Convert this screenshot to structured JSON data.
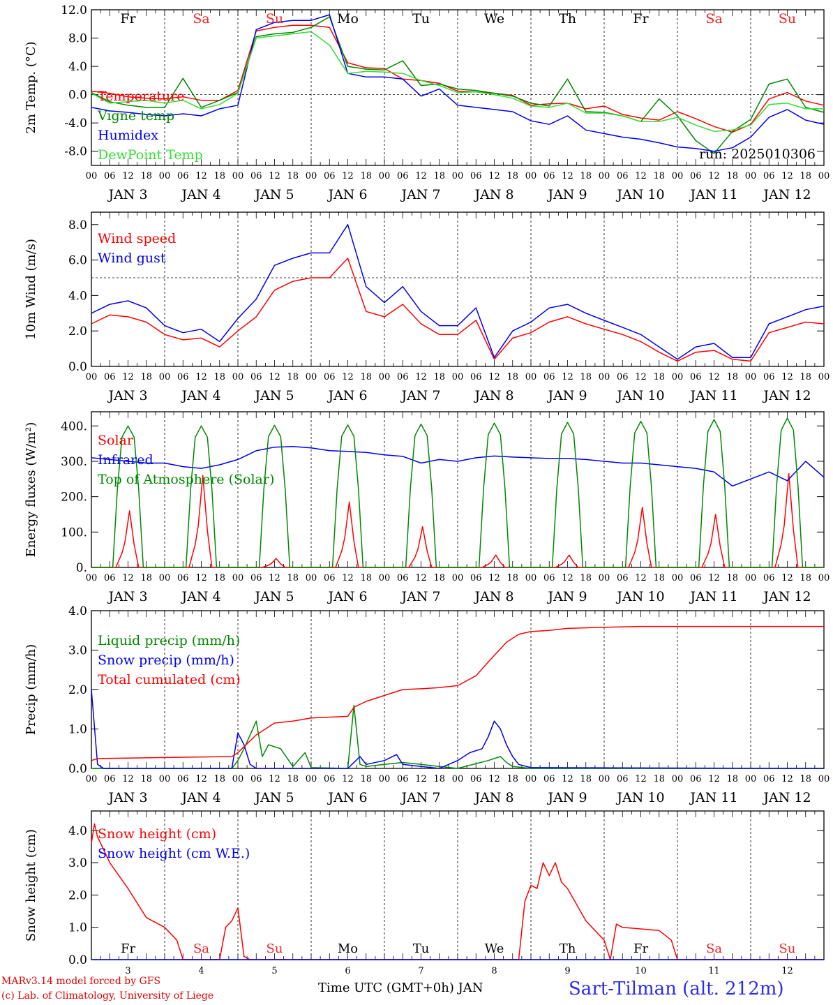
{
  "footer": {
    "model": "MARv3.14 model forced by GFS",
    "lab": "(c) Lab. of Climatology, University of Liege",
    "time_axis": "Time UTC (GMT+0h) JAN",
    "station": "Sart-Tilman (alt. 212m)"
  },
  "run_label": "run: 2025010306",
  "day_names": [
    "Fr",
    "Sa",
    "Su",
    "Mo",
    "Tu",
    "We",
    "Th",
    "Fr",
    "Sa",
    "Su"
  ],
  "weekend_color": "#ff2020",
  "weekday_color": "#000000",
  "date_labels": [
    "JAN  3",
    "JAN  4",
    "JAN  5",
    "JAN  6",
    "JAN  7",
    "JAN  8",
    "JAN  9",
    "JAN 10",
    "JAN 11",
    "JAN 12"
  ],
  "hour_labels": [
    "00",
    "06",
    "12",
    "18"
  ],
  "bottom_day_numbers": [
    "3",
    "4",
    "5",
    "6",
    "7",
    "8",
    "9",
    "10",
    "11",
    "12"
  ],
  "chart_data": [
    {
      "type": "line",
      "ylabel": "2m Temp. (°C)",
      "ylim": [
        -10,
        12
      ],
      "yticks": [
        "12.0",
        "8.0",
        "4.0",
        "0.0",
        "-4.0",
        "-8.0"
      ],
      "ytick_values": [
        12,
        8,
        4,
        0,
        -4,
        -8
      ],
      "hline": 0,
      "x_unit": "hours from JAN 3 00 UTC",
      "series": [
        {
          "name": "Temperature",
          "color": "#ff0000",
          "x": [
            0,
            6,
            12,
            18,
            24,
            30,
            36,
            42,
            48,
            54,
            60,
            66,
            72,
            78,
            84,
            90,
            96,
            102,
            108,
            114,
            120,
            126,
            132,
            138,
            144,
            150,
            156,
            162,
            168,
            174,
            180,
            186,
            192,
            198,
            204,
            210,
            216,
            222,
            228,
            234,
            240
          ],
          "y": [
            0.5,
            0.2,
            -0.3,
            -0.5,
            -0.6,
            -0.3,
            -0.8,
            -0.8,
            0.6,
            9,
            9.5,
            9.8,
            9.8,
            9.5,
            4.5,
            3.8,
            3.7,
            2.2,
            2,
            1.6,
            0.5,
            0.4,
            0.2,
            -0.1,
            -1.5,
            -1.3,
            -1.2,
            -2,
            -1.6,
            -2.8,
            -3.3,
            -3.6,
            -2.4,
            -3.4,
            -4.5,
            -5.3,
            -4.2,
            -0.6,
            0.3,
            -0.9,
            -1.5
          ]
        },
        {
          "name": "Vigne temp",
          "color": "#008800",
          "x": [
            0,
            6,
            12,
            18,
            24,
            30,
            36,
            42,
            48,
            54,
            60,
            66,
            72,
            78,
            84,
            90,
            96,
            102,
            108,
            114,
            120,
            126,
            132,
            138,
            144,
            150,
            156,
            162,
            168,
            174,
            180,
            186,
            192,
            198,
            204,
            210,
            216,
            222,
            228,
            234,
            240
          ],
          "y": [
            0.3,
            -1.0,
            -1.5,
            -1.8,
            -1.8,
            2.3,
            -1.8,
            -0.8,
            0.3,
            8.2,
            8.6,
            8.8,
            9.5,
            11.0,
            4.0,
            3.6,
            3.5,
            4.8,
            1.3,
            1.5,
            0.8,
            0.6,
            0.2,
            -0.2,
            -1.2,
            -1.6,
            2.2,
            -2.4,
            -2.5,
            -3.0,
            -3.8,
            -0.6,
            -3.0,
            -6.5,
            -8.3,
            -5.2,
            -3.5,
            1.5,
            2.2,
            -1.8,
            -2.5
          ]
        },
        {
          "name": "Humidex",
          "color": "#0000ee",
          "x": [
            0,
            6,
            12,
            18,
            24,
            30,
            36,
            42,
            48,
            54,
            60,
            66,
            72,
            78,
            84,
            90,
            96,
            102,
            108,
            114,
            120,
            126,
            132,
            138,
            144,
            150,
            156,
            162,
            168,
            174,
            180,
            186,
            192,
            198,
            204,
            210,
            216,
            222,
            228,
            234,
            240
          ],
          "y": [
            -1.8,
            -2.3,
            -2.5,
            -2.8,
            -3.0,
            -2.7,
            -3.0,
            -2.0,
            -1.5,
            9.2,
            10.2,
            10.5,
            10.5,
            11.3,
            3.0,
            2.5,
            2.5,
            2.2,
            -0.2,
            0.8,
            -1.5,
            -1.8,
            -2.1,
            -2.4,
            -3.7,
            -4.2,
            -3.0,
            -5.0,
            -5.5,
            -6.0,
            -6.3,
            -6.8,
            -7.4,
            -7.6,
            -8.0,
            -7.5,
            -6.0,
            -3.2,
            -2.1,
            -3.6,
            -4.2
          ]
        },
        {
          "name": "DewPoint Temp",
          "color": "#33dd33",
          "x": [
            0,
            6,
            12,
            18,
            24,
            30,
            36,
            42,
            48,
            54,
            60,
            66,
            72,
            78,
            84,
            90,
            96,
            102,
            108,
            114,
            120,
            126,
            132,
            138,
            144,
            150,
            156,
            162,
            168,
            174,
            180,
            186,
            192,
            198,
            204,
            210,
            216,
            222,
            228,
            234,
            240
          ],
          "y": [
            0.2,
            -1.2,
            -1.0,
            -0.8,
            -1.2,
            -0.8,
            -2.0,
            -1.4,
            0.2,
            8.0,
            8.3,
            8.6,
            8.9,
            7.0,
            3.0,
            3.3,
            3.2,
            3.0,
            2.0,
            1.3,
            0.3,
            0.4,
            0.0,
            -0.5,
            -1.6,
            -1.8,
            -1.2,
            -2.6,
            -2.6,
            -3.0,
            -3.8,
            -3.8,
            -3.2,
            -4.3,
            -5.2,
            -5.0,
            -4.3,
            -1.4,
            -1.2,
            -2.0,
            -2.0
          ]
        }
      ]
    },
    {
      "type": "line",
      "ylabel": "10m Wind (m/s)",
      "ylim": [
        0,
        8.7
      ],
      "yticks": [
        "8.0",
        "6.0",
        "4.0",
        "2.0",
        "0.0"
      ],
      "ytick_values": [
        8,
        6,
        4,
        2,
        0
      ],
      "hline": 5,
      "series": [
        {
          "name": "Wind speed",
          "color": "#ff0000",
          "x": [
            0,
            6,
            12,
            18,
            24,
            30,
            36,
            42,
            48,
            54,
            60,
            66,
            72,
            78,
            84,
            90,
            96,
            102,
            108,
            114,
            120,
            126,
            132,
            138,
            144,
            150,
            156,
            162,
            168,
            174,
            180,
            186,
            192,
            198,
            204,
            210,
            216,
            222,
            228,
            234,
            240
          ],
          "y": [
            2.4,
            2.9,
            2.8,
            2.5,
            1.8,
            1.5,
            1.6,
            1.1,
            2.0,
            2.8,
            4.3,
            4.8,
            5.0,
            5.0,
            6.1,
            3.1,
            2.8,
            3.5,
            2.4,
            1.8,
            1.8,
            2.6,
            0.4,
            1.6,
            1.9,
            2.5,
            2.8,
            2.4,
            2.1,
            1.8,
            1.4,
            0.8,
            0.3,
            0.8,
            0.9,
            0.4,
            0.3,
            1.9,
            2.2,
            2.5,
            2.4
          ]
        },
        {
          "name": "Wind gust",
          "color": "#0000ee",
          "x": [
            0,
            6,
            12,
            18,
            24,
            30,
            36,
            42,
            48,
            54,
            60,
            66,
            72,
            78,
            84,
            90,
            96,
            102,
            108,
            114,
            120,
            126,
            132,
            138,
            144,
            150,
            156,
            162,
            168,
            174,
            180,
            186,
            192,
            198,
            204,
            210,
            216,
            222,
            228,
            234,
            240
          ],
          "y": [
            3.0,
            3.5,
            3.7,
            3.3,
            2.3,
            1.9,
            2.1,
            1.4,
            2.7,
            3.8,
            5.7,
            6.1,
            6.4,
            6.4,
            8.0,
            4.5,
            3.6,
            4.5,
            3.1,
            2.3,
            2.3,
            3.3,
            0.5,
            2.0,
            2.5,
            3.3,
            3.5,
            3.0,
            2.6,
            2.2,
            1.8,
            1.1,
            0.4,
            1.1,
            1.3,
            0.5,
            0.5,
            2.4,
            2.8,
            3.2,
            3.4
          ]
        }
      ]
    },
    {
      "type": "line",
      "ylabel": "Energy fluxes (W/m²)",
      "ylim": [
        0,
        440
      ],
      "yticks": [
        "400.",
        "300.",
        "200.",
        "100.",
        "0."
      ],
      "ytick_values": [
        400,
        300,
        200,
        100,
        0
      ],
      "series": [
        {
          "name": "Solar",
          "color": "#ff0000",
          "day_peaks": [
            160,
            260,
            25,
            185,
            115,
            35,
            35,
            170,
            150,
            265
          ]
        },
        {
          "name": "Infrared",
          "color": "#0000ee",
          "x": [
            0,
            6,
            12,
            18,
            24,
            30,
            36,
            42,
            48,
            54,
            60,
            66,
            72,
            78,
            84,
            90,
            96,
            102,
            108,
            114,
            120,
            126,
            132,
            138,
            144,
            150,
            156,
            162,
            168,
            174,
            180,
            186,
            192,
            198,
            204,
            210,
            216,
            222,
            228,
            234,
            240
          ],
          "y": [
            310,
            305,
            300,
            295,
            295,
            285,
            280,
            290,
            305,
            330,
            340,
            342,
            338,
            330,
            328,
            325,
            318,
            314,
            295,
            305,
            300,
            310,
            315,
            312,
            310,
            308,
            308,
            305,
            300,
            295,
            295,
            290,
            285,
            280,
            270,
            230,
            250,
            270,
            245,
            300,
            255
          ]
        },
        {
          "name": "Top of Atmosphere (Solar)",
          "color": "#008800",
          "day_peaks": [
            400,
            400,
            402,
            403,
            405,
            408,
            410,
            413,
            418,
            422
          ]
        }
      ]
    },
    {
      "type": "line",
      "ylabel": "Precip (mm/h)",
      "ylim": [
        0,
        4.0
      ],
      "yticks": [
        "4.0",
        "3.0",
        "2.0",
        "1.0",
        "0.0"
      ],
      "ytick_values": [
        4,
        3,
        2,
        1,
        0
      ],
      "series": [
        {
          "name": "Liquid precip (mm/h)",
          "color": "#008800",
          "x": [
            0,
            24,
            46,
            48,
            50,
            54,
            56,
            58,
            62,
            66,
            70,
            72,
            84,
            86,
            88,
            90,
            96,
            102,
            108,
            114,
            120,
            130,
            134,
            136,
            138,
            144,
            240
          ],
          "y": [
            0,
            0,
            0,
            0.2,
            0.5,
            1.2,
            0.3,
            0.6,
            0.5,
            0.05,
            0.4,
            0.02,
            0,
            1.6,
            0.1,
            0.05,
            0.1,
            0.15,
            0.1,
            0.05,
            0,
            0.2,
            0.3,
            0.15,
            0.05,
            0,
            0
          ]
        },
        {
          "name": "Snow precip (mm/h)",
          "color": "#0000ee",
          "x": [
            0,
            2,
            4,
            24,
            46,
            48,
            50,
            52,
            54,
            84,
            88,
            90,
            96,
            100,
            102,
            108,
            114,
            120,
            124,
            128,
            130,
            132,
            134,
            136,
            138,
            140,
            144,
            240
          ],
          "y": [
            2.0,
            0.1,
            0,
            0,
            0,
            0.9,
            0.6,
            0.1,
            0,
            0,
            0.3,
            0.1,
            0.2,
            0.35,
            0.1,
            0.05,
            0,
            0.2,
            0.4,
            0.5,
            0.8,
            1.2,
            1.0,
            0.6,
            0.3,
            0.1,
            0.02,
            0
          ]
        },
        {
          "name": "Total cumulated (cm)",
          "color": "#ff0000",
          "x": [
            0,
            2,
            46,
            48,
            50,
            54,
            60,
            66,
            72,
            84,
            86,
            90,
            96,
            102,
            108,
            114,
            120,
            126,
            130,
            136,
            140,
            144,
            150,
            156,
            168,
            180,
            192,
            240
          ],
          "y": [
            0.2,
            0.25,
            0.3,
            0.4,
            0.55,
            0.85,
            1.15,
            1.2,
            1.28,
            1.32,
            1.55,
            1.7,
            1.85,
            2.0,
            2.02,
            2.05,
            2.1,
            2.35,
            2.7,
            3.2,
            3.4,
            3.47,
            3.5,
            3.55,
            3.58,
            3.6,
            3.6,
            3.6
          ]
        }
      ]
    },
    {
      "type": "line",
      "ylabel": "Snow height (cm)",
      "ylim": [
        0,
        4.6
      ],
      "yticks": [
        "4.0",
        "3.0",
        "2.0",
        "1.0",
        "0.0"
      ],
      "ytick_values": [
        4,
        3,
        2,
        1,
        0
      ],
      "series": [
        {
          "name": "Snow height (cm)",
          "color": "#ff0000",
          "x": [
            0,
            1,
            2,
            6,
            12,
            18,
            24,
            28,
            30,
            42,
            44,
            46,
            48,
            50,
            52,
            140,
            142,
            144,
            146,
            148,
            150,
            152,
            154,
            156,
            162,
            168,
            170,
            172,
            174,
            180,
            186,
            190,
            192,
            240
          ],
          "y": [
            3.6,
            4.2,
            3.8,
            3.0,
            2.2,
            1.3,
            1.0,
            0.6,
            0.0,
            0.0,
            1.0,
            1.2,
            1.6,
            0.1,
            0.0,
            0.0,
            1.8,
            2.3,
            2.2,
            3.0,
            2.6,
            3.0,
            2.4,
            2.2,
            1.2,
            0.6,
            0.0,
            1.1,
            1.0,
            0.95,
            0.9,
            0.6,
            0.0,
            0.0
          ]
        },
        {
          "name": "Snow height (cm W.E.)",
          "color": "#0000ee",
          "x": [
            0,
            240
          ],
          "y": [
            0,
            0
          ]
        }
      ]
    }
  ]
}
